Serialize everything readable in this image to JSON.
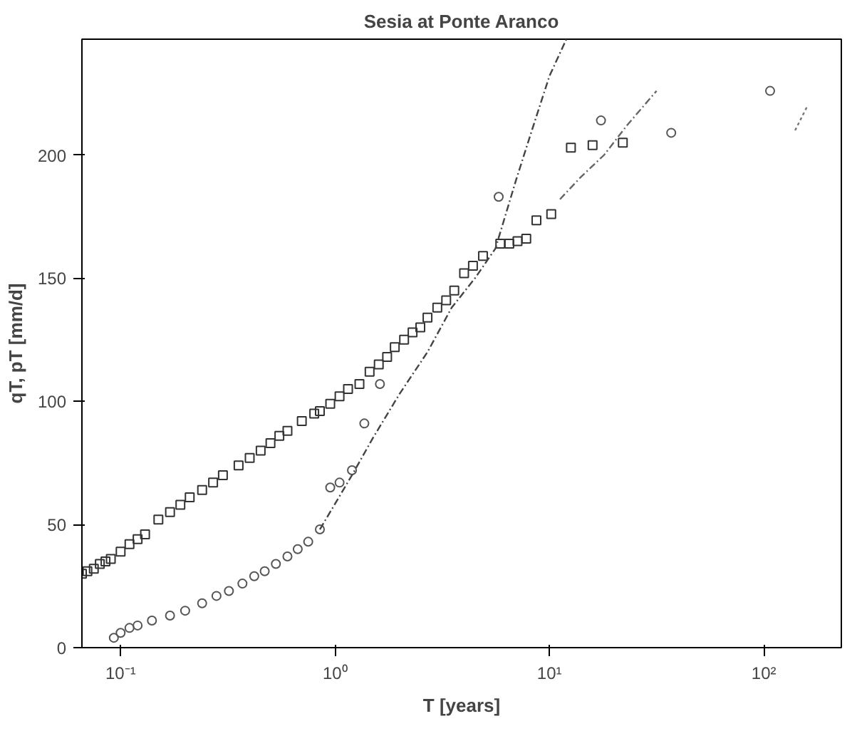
{
  "chart_data": {
    "type": "scatter",
    "title": "Sesia at Ponte Aranco",
    "xlabel": "T [years]",
    "ylabel": "qT, pT [mm/d]",
    "log": "x",
    "grid": false,
    "xlim": [
      0.066,
      230
    ],
    "ylim": [
      0,
      247
    ],
    "xticks": [
      {
        "value": 0.1,
        "label": "10⁻¹"
      },
      {
        "value": 1,
        "label": "10⁰"
      },
      {
        "value": 10,
        "label": "10¹"
      },
      {
        "value": 100,
        "label": "10²"
      }
    ],
    "yticks": [
      0,
      50,
      100,
      150,
      200
    ],
    "series": [
      {
        "marker": "square",
        "color": "#333333",
        "x": [
          0.066,
          0.07,
          0.075,
          0.08,
          0.085,
          0.09,
          0.1,
          0.11,
          0.12,
          0.13,
          0.15,
          0.17,
          0.19,
          0.21,
          0.24,
          0.27,
          0.3,
          0.355,
          0.4,
          0.45,
          0.5,
          0.55,
          0.6,
          0.7,
          0.8,
          0.85,
          0.95,
          1.05,
          1.15,
          1.3,
          1.45,
          1.6,
          1.75,
          1.9,
          2.1,
          2.3,
          2.5,
          2.7,
          3.0,
          3.3,
          3.6,
          4.0,
          4.4,
          4.9,
          5.9,
          6.5,
          7.1,
          7.8,
          8.7,
          10.2,
          12.6,
          15.9,
          22
        ],
        "values": [
          30,
          31,
          32,
          34,
          35,
          36,
          39,
          42,
          44,
          46,
          52,
          55,
          58,
          61,
          64,
          67,
          70,
          74,
          77,
          80,
          83,
          86,
          88,
          92,
          95,
          96,
          99,
          102,
          105,
          107,
          112,
          115,
          118,
          122,
          125,
          128,
          130,
          134,
          138,
          141,
          145,
          152,
          155,
          159,
          164,
          164,
          165,
          166,
          173.5,
          176,
          203,
          204,
          205
        ]
      },
      {
        "marker": "circle",
        "color": "#555555",
        "x": [
          0.093,
          0.1,
          0.11,
          0.12,
          0.14,
          0.17,
          0.2,
          0.24,
          0.28,
          0.32,
          0.37,
          0.42,
          0.47,
          0.53,
          0.6,
          0.67,
          0.75,
          0.85,
          0.95,
          1.05,
          1.2,
          1.37,
          1.62,
          5.8,
          17.4,
          37,
          107
        ],
        "values": [
          4,
          6,
          8,
          9,
          11,
          13,
          15,
          18,
          21,
          23,
          26,
          29,
          31,
          34,
          37,
          40,
          43,
          48,
          65,
          67,
          72,
          91,
          107,
          183,
          214,
          209,
          226
        ]
      },
      {
        "type": "line",
        "line_style": "dashed",
        "color": "#444444",
        "x": [
          0.85,
          1.2,
          1.5,
          2.0,
          2.7,
          3.5,
          4.5,
          5.6,
          7.0,
          8.5,
          10,
          12
        ],
        "values": [
          48,
          70,
          85,
          103,
          120,
          138,
          150,
          162,
          190,
          213,
          232,
          247
        ]
      },
      {
        "type": "line",
        "line_style": "dashed",
        "color": "#666666",
        "x": [
          11.2,
          14,
          18,
          23,
          31.6
        ],
        "values": [
          182,
          191,
          200,
          212,
          226
        ]
      },
      {
        "type": "line",
        "line_style": "dotted",
        "color": "#777777",
        "x": [
          140,
          160
        ],
        "values": [
          210,
          220
        ]
      }
    ]
  }
}
